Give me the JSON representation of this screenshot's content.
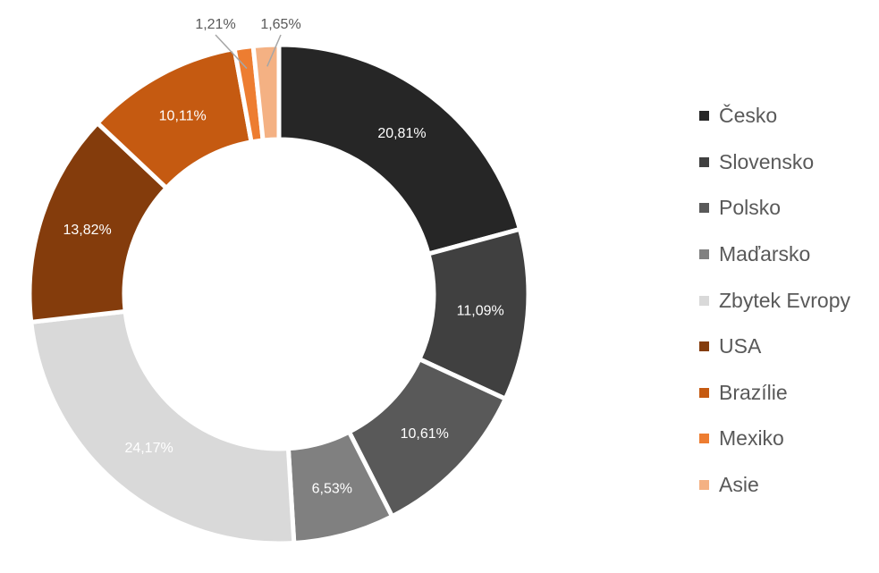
{
  "chart_data": {
    "type": "pie",
    "variant": "donut",
    "categories": [
      "Česko",
      "Slovensko",
      "Polsko",
      "Maďarsko",
      "Zbytek Evropy",
      "USA",
      "Brazílie",
      "Mexiko",
      "Asie"
    ],
    "values": [
      20.81,
      11.09,
      10.61,
      6.53,
      24.17,
      13.82,
      10.11,
      1.21,
      1.65
    ],
    "data_labels": [
      "20,81%",
      "11,09%",
      "10,61%",
      "6,53%",
      "24,17%",
      "13,82%",
      "10,11%",
      "1,21%",
      "1,65%"
    ],
    "colors": [
      "#262626",
      "#404040",
      "#595959",
      "#808080",
      "#d9d9d9",
      "#843c0c",
      "#c55a11",
      "#ed7d31",
      "#f4b183"
    ],
    "label_colors": [
      "#ffffff",
      "#ffffff",
      "#ffffff",
      "#ffffff",
      "#ffffff",
      "#ffffff",
      "#ffffff",
      "#595959",
      "#595959"
    ],
    "outside_labels": [
      false,
      false,
      false,
      false,
      false,
      false,
      false,
      true,
      true
    ],
    "start_angle_deg": 0,
    "direction": "clockwise",
    "legend_position": "right"
  }
}
